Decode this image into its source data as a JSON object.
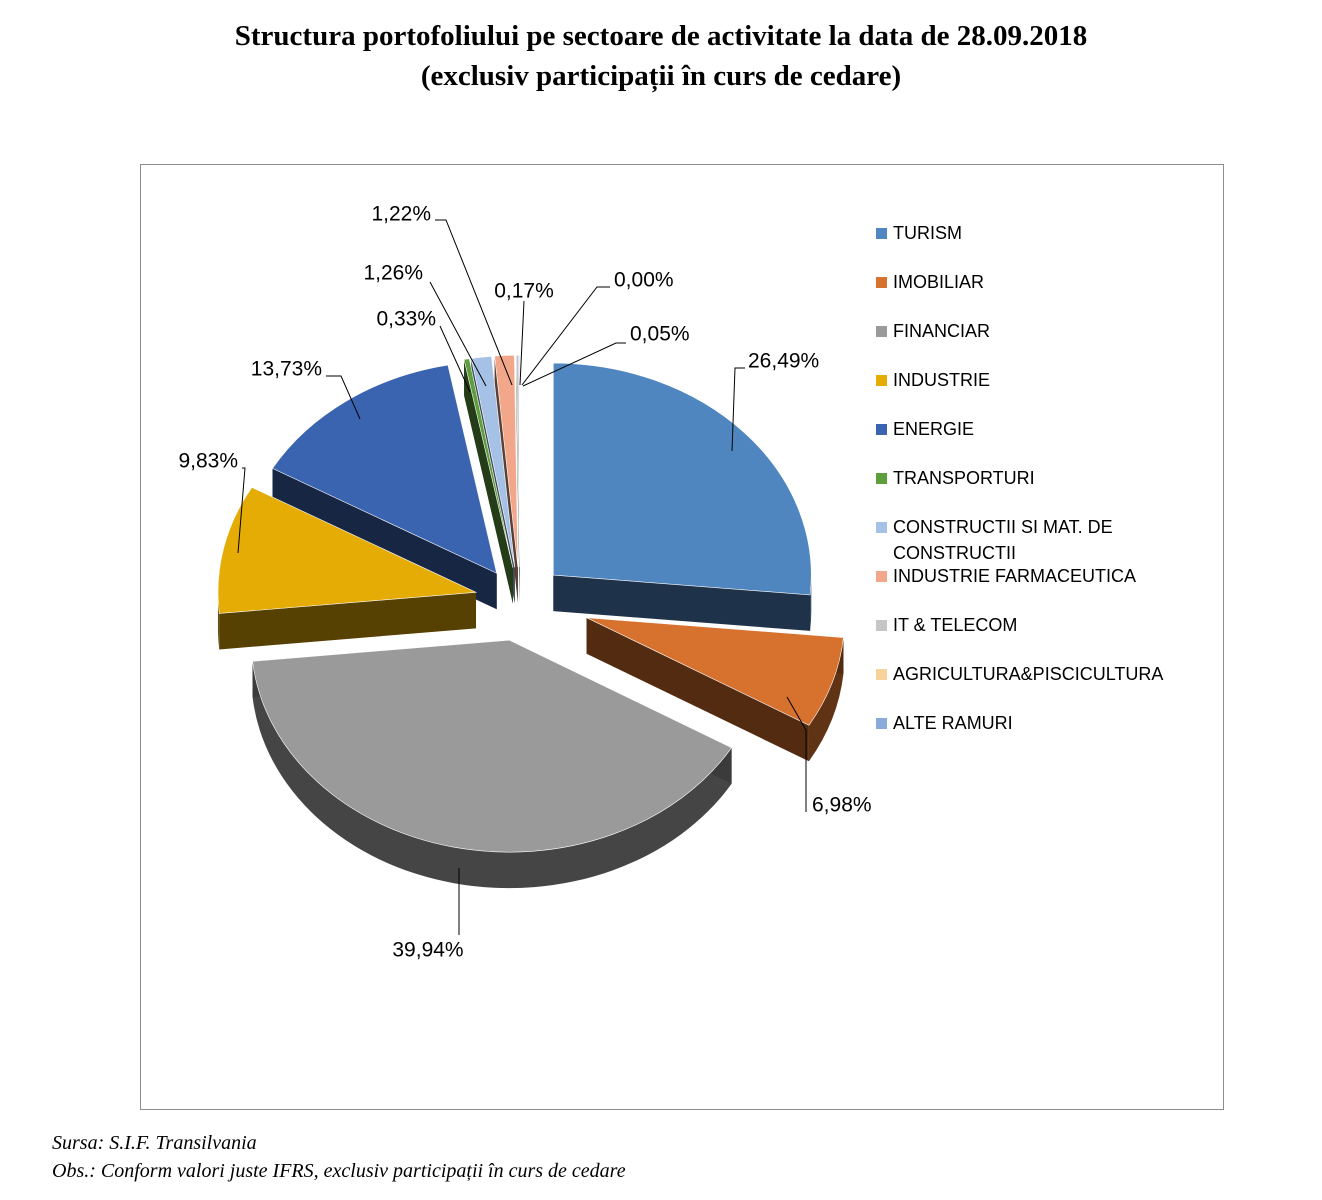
{
  "title_line1": "Structura portofoliului pe sectoare de activitate la data de 28.09.2018",
  "title_line2": "(exclusiv participații în curs de cedare)",
  "source": "Sursa: S.I.F. Transilvania",
  "observation": "Obs.: Conform valori juste IFRS, exclusiv participații în curs de cedare",
  "chart_data": {
    "type": "pie",
    "style": "3d-exploded",
    "title": "Structura portofoliului pe sectoare de activitate la data de 28.09.2018 (exclusiv participații în curs de cedare)",
    "legend_position": "right",
    "unit": "%",
    "slices": [
      {
        "name": "TURISM",
        "value": 26.49,
        "label": "26,49%",
        "color": "#4f86c0"
      },
      {
        "name": "IMOBILIAR",
        "value": 6.98,
        "label": "6,98%",
        "color": "#d7712e"
      },
      {
        "name": "FINANCIAR",
        "value": 39.94,
        "label": "39,94%",
        "color": "#9a9a9a"
      },
      {
        "name": "INDUSTRIE",
        "value": 9.83,
        "label": "9,83%",
        "color": "#e5ac06"
      },
      {
        "name": "ENERGIE",
        "value": 13.73,
        "label": "13,73%",
        "color": "#3a64b0"
      },
      {
        "name": "TRANSPORTURI",
        "value": 0.33,
        "label": "0,33%",
        "color": "#5f9e3c"
      },
      {
        "name": "CONSTRUCTII SI MAT. DE CONSTRUCTII",
        "value": 1.26,
        "label": "1,26%",
        "color": "#a5c2e6"
      },
      {
        "name": "INDUSTRIE FARMACEUTICA",
        "value": 1.22,
        "label": "1,22%",
        "color": "#f2a78a"
      },
      {
        "name": "IT & TELECOM",
        "value": 0.17,
        "label": "0,17%",
        "color": "#c6c6c6"
      },
      {
        "name": "AGRICULTURA&PISCICULTURA",
        "value": 0.0,
        "label": "0,00%",
        "color": "#f7d29a"
      },
      {
        "name": "ALTE RAMURI",
        "value": 0.05,
        "label": "0,05%",
        "color": "#8aabd9"
      }
    ]
  }
}
